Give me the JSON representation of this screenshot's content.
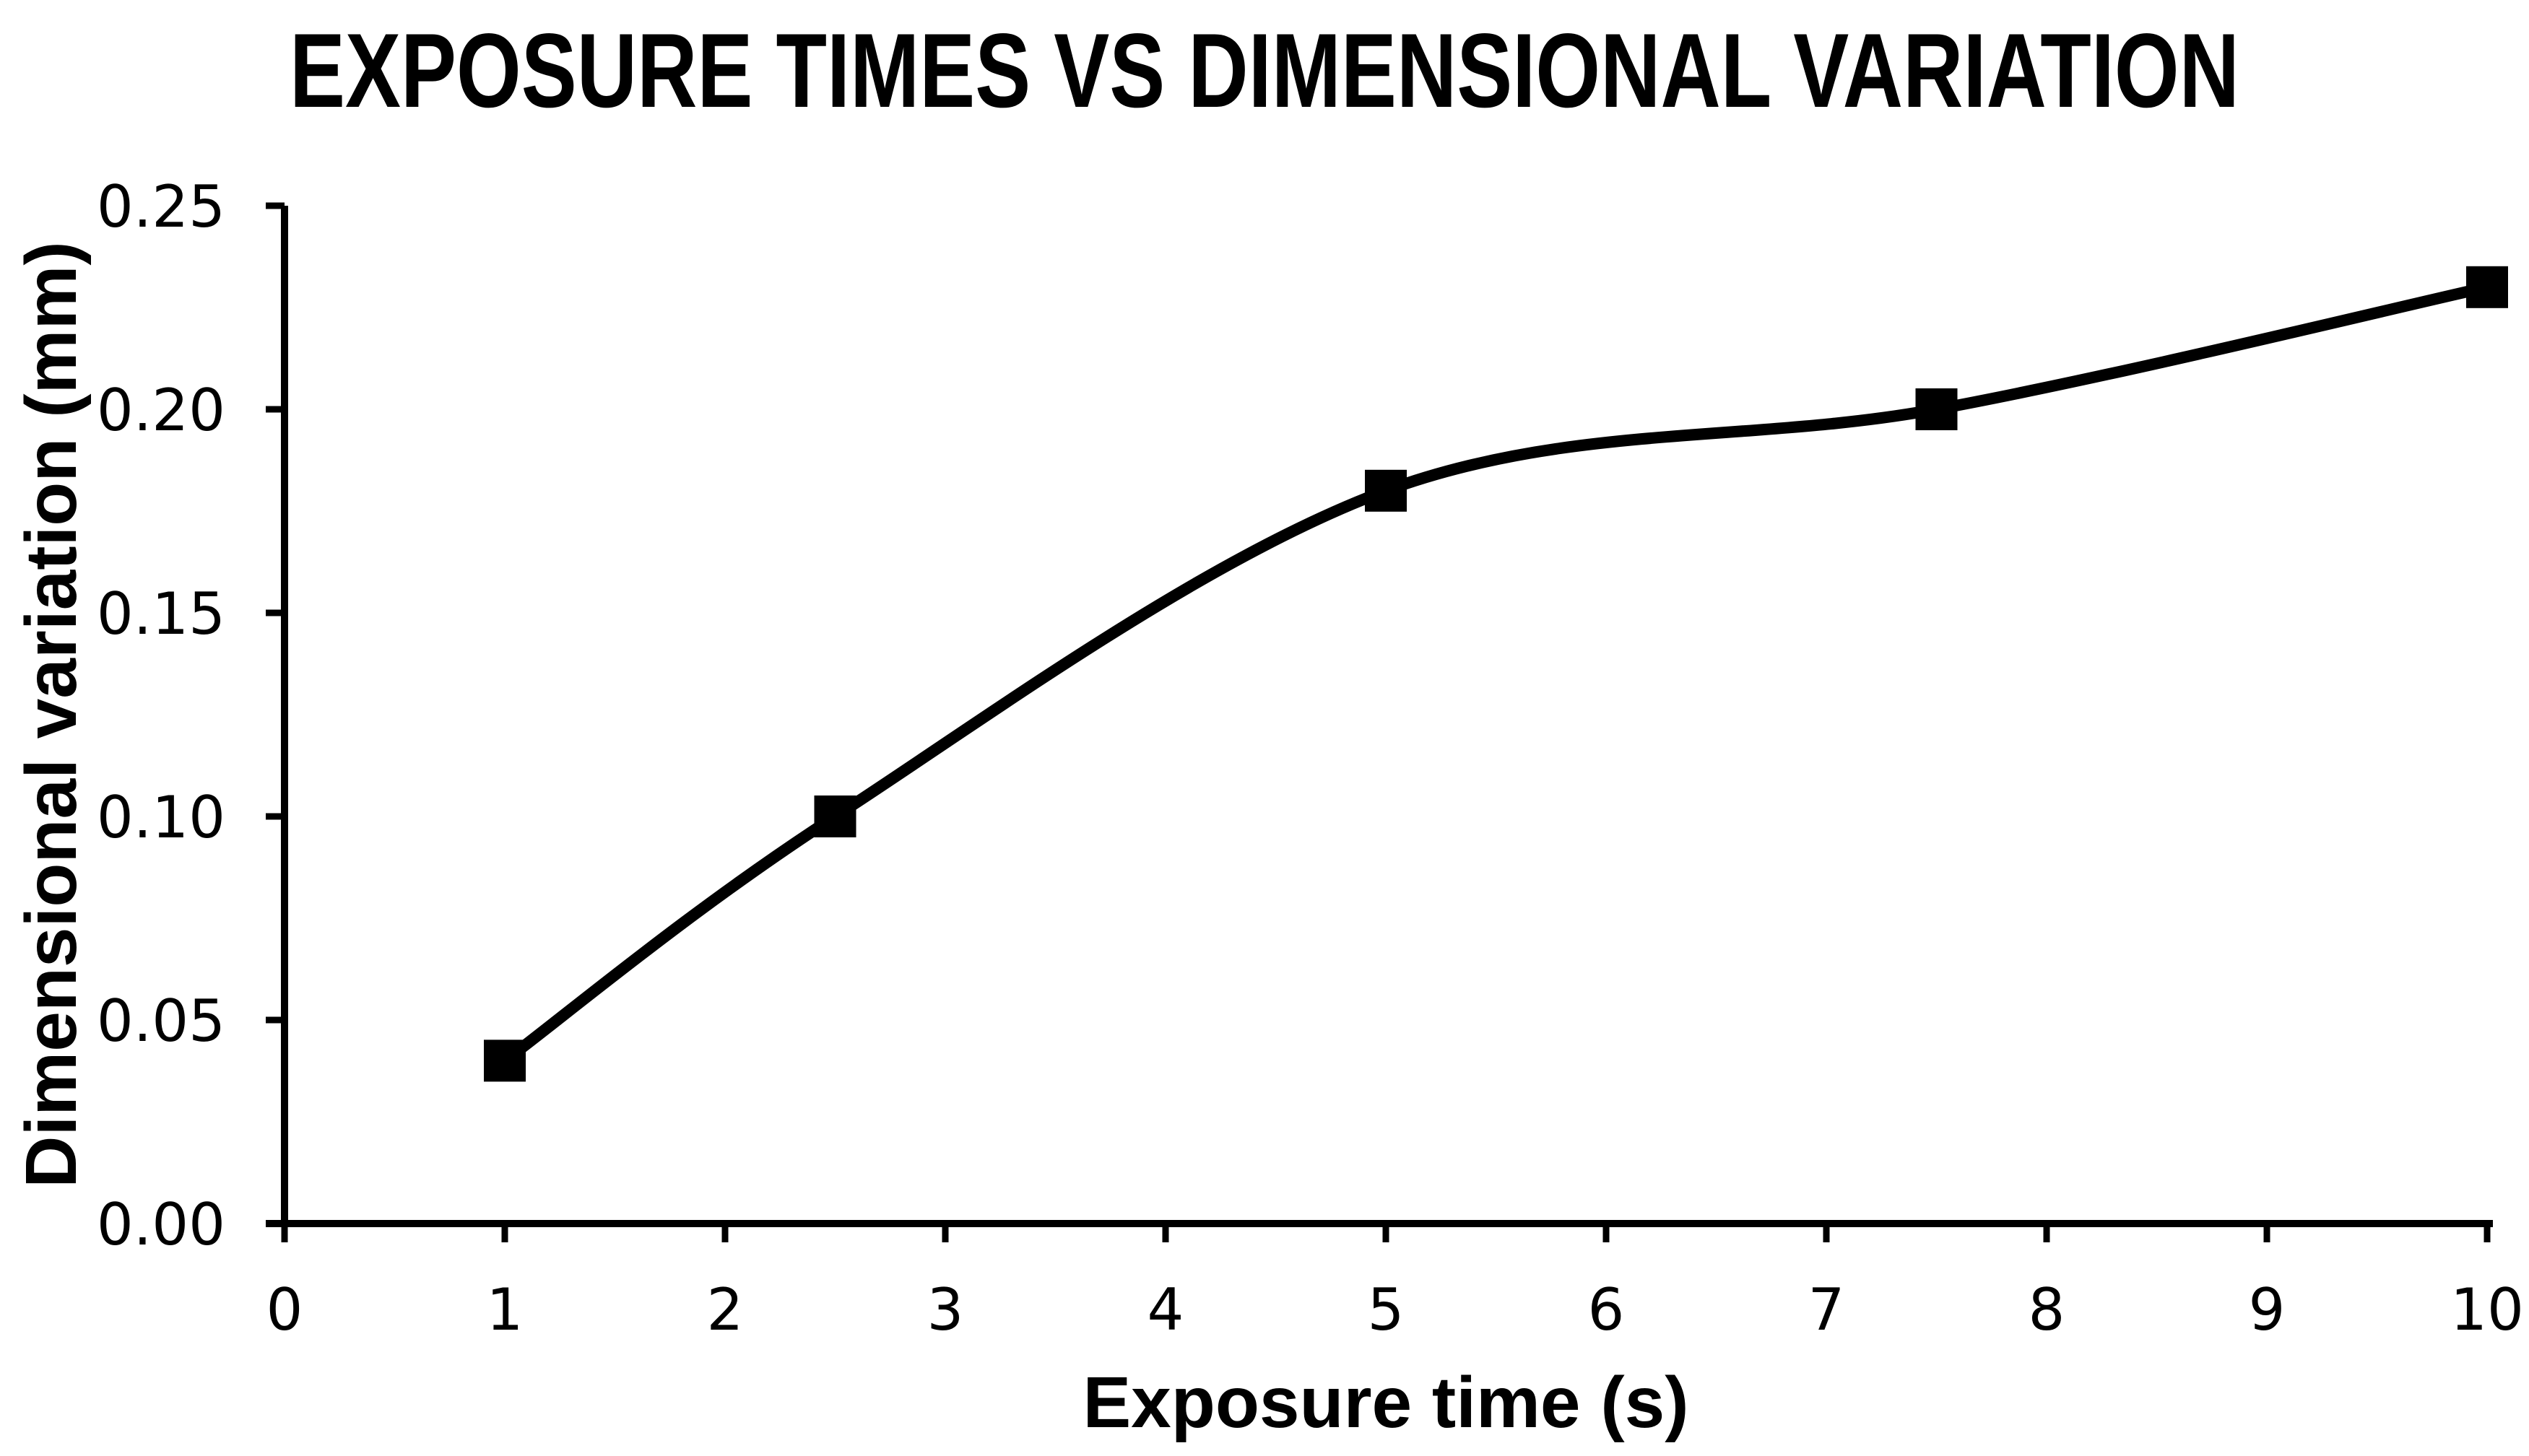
{
  "chart_data": {
    "type": "line",
    "title": "EXPOSURE TIMES VS DIMENSIONAL VARIATION",
    "xlabel": "Exposure time (s)",
    "ylabel": "Dimensional variation (mm)",
    "series": [
      {
        "x": [
          1,
          2.5,
          5,
          7.5,
          10
        ],
        "y": [
          0.04,
          0.1,
          0.18,
          0.2,
          0.23
        ],
        "marker": "square",
        "color": "#000000",
        "smooth": true
      }
    ],
    "xlim": [
      0,
      10
    ],
    "ylim": [
      0,
      0.25
    ],
    "x_ticks": {
      "values": [
        0,
        1,
        2,
        3,
        4,
        5,
        6,
        7,
        8,
        9,
        10
      ],
      "labels": [
        "0",
        "1",
        "2",
        "3",
        "4",
        "5",
        "6",
        "7",
        "8",
        "9",
        "10"
      ]
    },
    "y_ticks": {
      "values": [
        0,
        0.05,
        0.1,
        0.15,
        0.2,
        0.25
      ],
      "labels": [
        "0.00",
        "0.05",
        "0.10",
        "0.15",
        "0.20",
        "0.25"
      ]
    },
    "grid": false,
    "legend": false,
    "background": "#ffffff",
    "axis_color": "#000000",
    "text_color": "#000000"
  }
}
